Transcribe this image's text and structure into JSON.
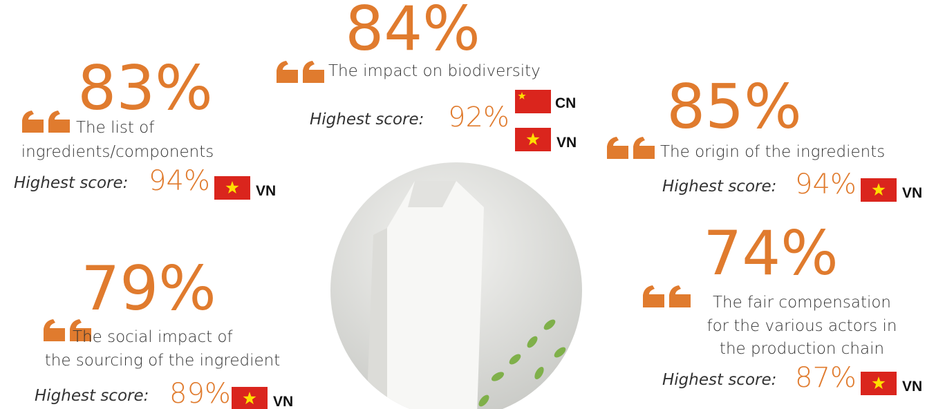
{
  "items": [
    {
      "percent": "84%",
      "lines": [
        "The impact on biodiversity"
      ],
      "score_label": "Highest score:",
      "score": "92%",
      "countries": [
        "CN",
        "VN"
      ]
    },
    {
      "percent": "83%",
      "lines": [
        "The list of",
        "ingredients/components"
      ],
      "score_label": "Highest score:",
      "score": "94%",
      "countries": [
        "VN"
      ]
    },
    {
      "percent": "85%",
      "lines": [
        "The origin of the ingredients"
      ],
      "score_label": "Highest score:",
      "score": "94%",
      "countries": [
        "VN"
      ]
    },
    {
      "percent": "79%",
      "lines": [
        "The social impact of",
        "the sourcing of the ingredient"
      ],
      "score_label": "Highest score:",
      "score": "89%",
      "countries": [
        "VN"
      ]
    },
    {
      "percent": "74%",
      "lines": [
        "The fair compensation",
        "for the various actors in",
        "the production chain"
      ],
      "score_label": "Highest score:",
      "score": "87%",
      "countries": [
        "VN"
      ]
    }
  ]
}
